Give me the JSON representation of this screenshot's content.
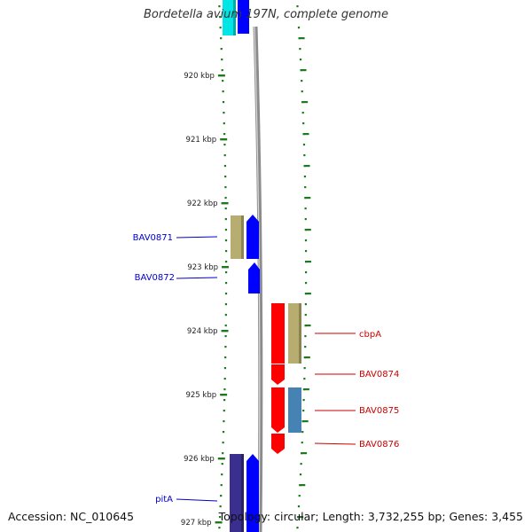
{
  "title": "Bordetella avium 197N, complete genome",
  "footer": {
    "accession": "Accession: NC_010645",
    "summary": "Topology: circular; Length: 3,732,255 bp; Genes: 3,455"
  },
  "colors": {
    "background": "#ffffff",
    "tick": "#1f7a1f",
    "backbone": "#8c8c8c",
    "forward_label": "#0000cc",
    "reverse_label": "#cc0000",
    "gene_blue": "#0000ff",
    "gene_red": "#ff0000",
    "gene_cyan": "#00e5e5",
    "gene_khaki": "#b8ad70",
    "gene_purple": "#3a2f8f",
    "gene_steel": "#4682b4"
  },
  "ticks": [
    {
      "label": "920 kbp"
    },
    {
      "label": "921 kbp"
    },
    {
      "label": "922 kbp"
    },
    {
      "label": "923 kbp"
    },
    {
      "label": "924 kbp"
    },
    {
      "label": "925 kbp"
    },
    {
      "label": "926 kbp"
    },
    {
      "label": "927 kbp"
    }
  ],
  "genes": [
    {
      "label": "BAV0871",
      "strand": "forward"
    },
    {
      "label": "BAV0872",
      "strand": "forward"
    },
    {
      "label": "cbpA",
      "strand": "reverse"
    },
    {
      "label": "BAV0874",
      "strand": "reverse"
    },
    {
      "label": "BAV0875",
      "strand": "reverse"
    },
    {
      "label": "BAV0876",
      "strand": "reverse"
    },
    {
      "label": "pitA",
      "strand": "forward"
    }
  ]
}
